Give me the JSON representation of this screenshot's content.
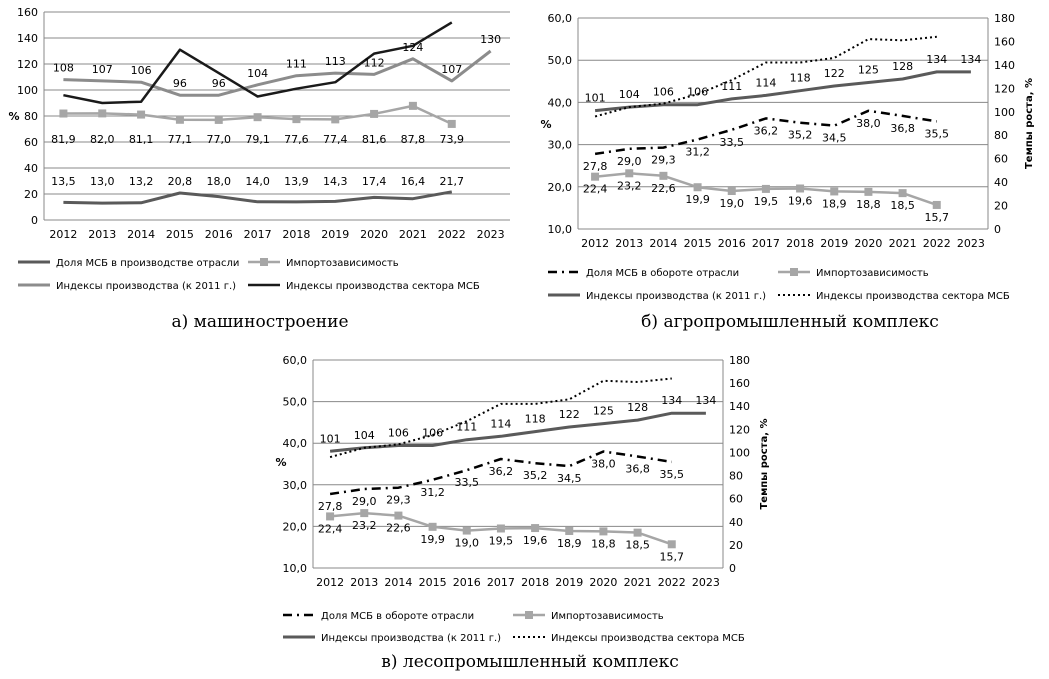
{
  "chart_data": [
    {
      "type": "line",
      "caption": "а) машиностроение",
      "x": [
        "2012",
        "2013",
        "2014",
        "2015",
        "2016",
        "2017",
        "2018",
        "2019",
        "2020",
        "2021",
        "2022",
        "2023"
      ],
      "ylim": [
        0,
        160
      ],
      "yticks": [
        "0",
        "20",
        "40",
        "60",
        "80",
        "100",
        "120",
        "140",
        "160"
      ],
      "ylabel": "%",
      "series": [
        {
          "name": "Доля МСБ в производстве отрасли",
          "axis": "left",
          "style": "solid-dark",
          "values": [
            13.5,
            13.0,
            13.2,
            20.8,
            18.0,
            14.0,
            13.9,
            14.3,
            17.4,
            16.4,
            21.7,
            null
          ],
          "labels": [
            "13,5",
            "13,0",
            "13,2",
            "20,8",
            "18,0",
            "14,0",
            "13,9",
            "14,3",
            "17,4",
            "16,4",
            "21,7",
            ""
          ]
        },
        {
          "name": "Импортозависимость",
          "axis": "left",
          "style": "gray-squares",
          "values": [
            81.9,
            82.0,
            81.1,
            77.1,
            77.0,
            79.1,
            77.6,
            77.4,
            81.6,
            87.8,
            73.9,
            null
          ],
          "labels": [
            "81,9",
            "82,0",
            "81,1",
            "77,1",
            "77,0",
            "79,1",
            "77,6",
            "77,4",
            "81,6",
            "87,8",
            "73,9",
            ""
          ]
        },
        {
          "name": "Индексы производства (к 2011 г.)",
          "axis": "left",
          "style": "gray-thick",
          "values": [
            108,
            107,
            106,
            96,
            96,
            104,
            111,
            113,
            112,
            124,
            107,
            130
          ],
          "labels": [
            "108",
            "107",
            "106",
            "96",
            "96",
            "104",
            "111",
            "113",
            "112",
            "124",
            "107",
            "130"
          ]
        },
        {
          "name": "Индексы производства сектора МСБ",
          "axis": "left",
          "style": "black",
          "values": [
            96,
            90,
            91,
            131,
            113,
            95,
            101,
            106,
            128,
            134,
            152,
            null
          ],
          "labels": []
        }
      ]
    },
    {
      "type": "line",
      "caption": "б) агропромышленный комплекс",
      "x": [
        "2012",
        "2013",
        "2014",
        "2015",
        "2016",
        "2017",
        "2018",
        "2019",
        "2020",
        "2021",
        "2022",
        "2023"
      ],
      "ylim": [
        10,
        60
      ],
      "yticks": [
        "10,0",
        "20,0",
        "30,0",
        "40,0",
        "50,0",
        "60,0"
      ],
      "ylim2": [
        0,
        180
      ],
      "yticks2": [
        "0",
        "20",
        "40",
        "60",
        "80",
        "100",
        "120",
        "140",
        "160",
        "180"
      ],
      "ylabel": "%",
      "y2label": "Темпы роста, %",
      "series": [
        {
          "name": "Доля МСБ в обороте отрасли",
          "axis": "left",
          "style": "dash-dot",
          "values": [
            27.8,
            29.0,
            29.3,
            31.2,
            33.5,
            36.2,
            35.2,
            34.5,
            38.0,
            36.8,
            35.5,
            null
          ],
          "labels": [
            "27,8",
            "29,0",
            "29,3",
            "31,2",
            "33,5",
            "36,2",
            "35,2",
            "34,5",
            "38,0",
            "36,8",
            "35,5",
            ""
          ]
        },
        {
          "name": "Импортозависимость",
          "axis": "left",
          "style": "gray-squares",
          "values": [
            22.4,
            23.2,
            22.6,
            19.9,
            19.0,
            19.5,
            19.6,
            18.9,
            18.8,
            18.5,
            15.7,
            null
          ],
          "labels": [
            "22,4",
            "23,2",
            "22,6",
            "19,9",
            "19,0",
            "19,5",
            "19,6",
            "18,9",
            "18,8",
            "18,5",
            "15,7",
            ""
          ]
        },
        {
          "name": "Индексы производства (к 2011 г.)",
          "axis": "right",
          "style": "solid-dark",
          "values": [
            101,
            104,
            106,
            106,
            111,
            114,
            118,
            122,
            125,
            128,
            134,
            134
          ],
          "labels": [
            "101",
            "104",
            "106",
            "106",
            "111",
            "114",
            "118",
            "122",
            "125",
            "128",
            "134",
            "134"
          ]
        },
        {
          "name": "Индексы производства сектора МСБ",
          "axis": "right",
          "style": "dotted",
          "values": [
            96,
            104,
            107,
            115,
            127,
            142,
            142,
            146,
            162,
            161,
            164,
            null
          ],
          "labels": []
        }
      ]
    },
    {
      "type": "line",
      "caption": "в) лесопромышленный комплекс",
      "x": [
        "2012",
        "2013",
        "2014",
        "2015",
        "2016",
        "2017",
        "2018",
        "2019",
        "2020",
        "2021",
        "2022",
        "2023"
      ],
      "ylim": [
        10,
        60
      ],
      "yticks": [
        "10,0",
        "20,0",
        "30,0",
        "40,0",
        "50,0",
        "60,0"
      ],
      "ylim2": [
        0,
        180
      ],
      "yticks2": [
        "0",
        "20",
        "40",
        "60",
        "80",
        "100",
        "120",
        "140",
        "160",
        "180"
      ],
      "ylabel": "%",
      "y2label": "Темпы роста, %",
      "series": [
        {
          "name": "Доля МСБ в обороте отрасли",
          "axis": "left",
          "style": "dash-dot",
          "values": [
            27.8,
            29.0,
            29.3,
            31.2,
            33.5,
            36.2,
            35.2,
            34.5,
            38.0,
            36.8,
            35.5,
            null
          ],
          "labels": [
            "27,8",
            "29,0",
            "29,3",
            "31,2",
            "33,5",
            "36,2",
            "35,2",
            "34,5",
            "38,0",
            "36,8",
            "35,5",
            ""
          ]
        },
        {
          "name": "Импортозависимость",
          "axis": "left",
          "style": "gray-squares",
          "values": [
            22.4,
            23.2,
            22.6,
            19.9,
            19.0,
            19.5,
            19.6,
            18.9,
            18.8,
            18.5,
            15.7,
            null
          ],
          "labels": [
            "22,4",
            "23,2",
            "22,6",
            "19,9",
            "19,0",
            "19,5",
            "19,6",
            "18,9",
            "18,8",
            "18,5",
            "15,7",
            ""
          ]
        },
        {
          "name": "Индексы производства (к 2011 г.)",
          "axis": "right",
          "style": "solid-dark",
          "values": [
            101,
            104,
            106,
            106,
            111,
            114,
            118,
            122,
            125,
            128,
            134,
            134
          ],
          "labels": [
            "101",
            "104",
            "106",
            "106",
            "111",
            "114",
            "118",
            "122",
            "125",
            "128",
            "134",
            "134"
          ]
        },
        {
          "name": "Индексы производства сектора МСБ",
          "axis": "right",
          "style": "dotted",
          "values": [
            96,
            104,
            107,
            115,
            127,
            142,
            142,
            146,
            162,
            161,
            164,
            null
          ],
          "labels": []
        }
      ]
    }
  ]
}
